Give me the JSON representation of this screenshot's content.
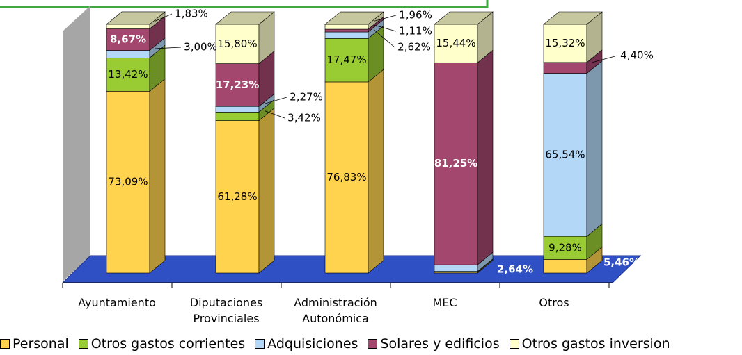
{
  "chart_data": {
    "type": "bar3d_stacked",
    "categories": [
      "Ayuntamiento",
      "Diputaciones Provinciales",
      "Administración Autonómica",
      "MEC",
      "Otros"
    ],
    "ylim": [
      0,
      100
    ],
    "series": [
      {
        "name": "Personal",
        "color": "#FFD34E",
        "values": [
          73.09,
          61.28,
          76.83,
          0.34,
          5.46
        ],
        "value_labels": [
          "73,09%",
          "61,28%",
          "76,83%",
          null,
          "5,46%"
        ]
      },
      {
        "name": "Otros gastos corrientes",
        "color": "#99CC33",
        "values": [
          13.42,
          3.42,
          17.47,
          0.33,
          9.28
        ],
        "value_labels": [
          "13,42%",
          "3,42%",
          "17,47%",
          null,
          "9,28%"
        ]
      },
      {
        "name": "Adquisiciones",
        "color": "#B3D7F7",
        "values": [
          3.0,
          2.27,
          2.62,
          2.64,
          65.54
        ],
        "value_labels": [
          "3,00%",
          "2,27%",
          "2,62%",
          "2,64%",
          "65,54%"
        ]
      },
      {
        "name": "Solares y edificios",
        "color": "#A3476F",
        "values": [
          8.67,
          17.23,
          1.11,
          81.25,
          4.4
        ],
        "value_labels": [
          "8,67%",
          "17,23%",
          "1,11%",
          "81,25%",
          "4,40%"
        ]
      },
      {
        "name": "Otros gastos inversion",
        "color": "#FFFFCC",
        "values": [
          1.83,
          15.8,
          1.96,
          15.44,
          15.32
        ],
        "value_labels": [
          "1,83%",
          "15,80%",
          "1,96%",
          "15,44%",
          "15,32%"
        ]
      }
    ]
  }
}
